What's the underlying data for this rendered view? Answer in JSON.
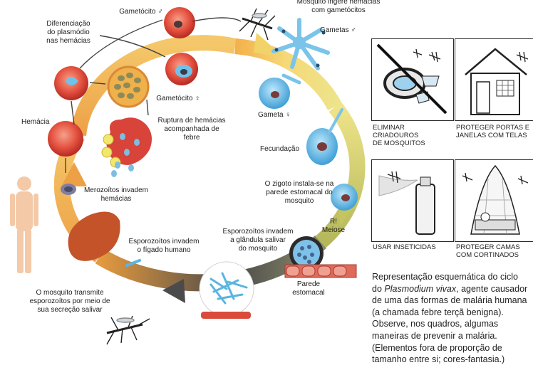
{
  "diagram": {
    "labels": {
      "diferenciacao": "Diferenciação\ndo plasmódio\nnas hemácias",
      "gametocito_m": "Gametócito ♂",
      "gametocito_f": "Gametócito ♀",
      "mosquito_ingere": "Mosquito ingere hemácias\ncom gametócitos",
      "gametas_m": "Gametas ♂",
      "gameta_f": "Gameta ♀",
      "hemacia": "Hemácia",
      "ruptura": "Ruptura de hemácias\nacompanhada de\nfebre",
      "fecundacao": "Fecundação",
      "zigoto": "O zigoto instala-se na\nparede estomacal do\nmosquito",
      "merozoitos": "Merozoítos invadem\nhemácias",
      "r_meiose": "R!\nMeiose",
      "esporozoitos_figado": "Esporozoítos invadem\no fígado humano",
      "esporozoitos_glandula": "Esporozoítos invadem\na glândula salivar\ndo mosquito",
      "parede_estomacal": "Parede\nestomacal",
      "mosquito_transmite": "O mosquito transmite\nesporozoítos por meio de\nsua secreção salivar"
    }
  },
  "prevention": {
    "panels": [
      {
        "caption": "ELIMINAR\nCRIADOUROS\nDE MOSQUITOS",
        "icon": "tire-water-icon"
      },
      {
        "caption": "PROTEGER PORTAS E\nJANELAS COM TELAS",
        "icon": "house-screen-icon"
      },
      {
        "caption": "USAR INSETICIDAS",
        "icon": "insecticide-spray-icon"
      },
      {
        "caption": "PROTEGER CAMAS\nCOM CORTINADOS",
        "icon": "bed-net-icon"
      }
    ]
  },
  "caption": {
    "before": "Representação esquemática do ciclo do ",
    "species": "Plasmodium vivax",
    "after": ", agente causador de uma das formas de malária humana (a chamada febre terçã benigna). Observe, nos quadros, algumas maneiras de prevenir a malária. (Elementos fora de proporção de tamanho entre si; cores-fantasia.)"
  },
  "colors": {
    "cycle_orange": "#f2b24a",
    "cycle_yellow": "#f4e27a",
    "cycle_olive": "#bfc25c",
    "cycle_dark": "#4b4b4b",
    "red_cell": "#e0493a",
    "blue_cell": "#6ec2ea",
    "liver": "#c4532a",
    "skin": "#f4c9a8"
  }
}
